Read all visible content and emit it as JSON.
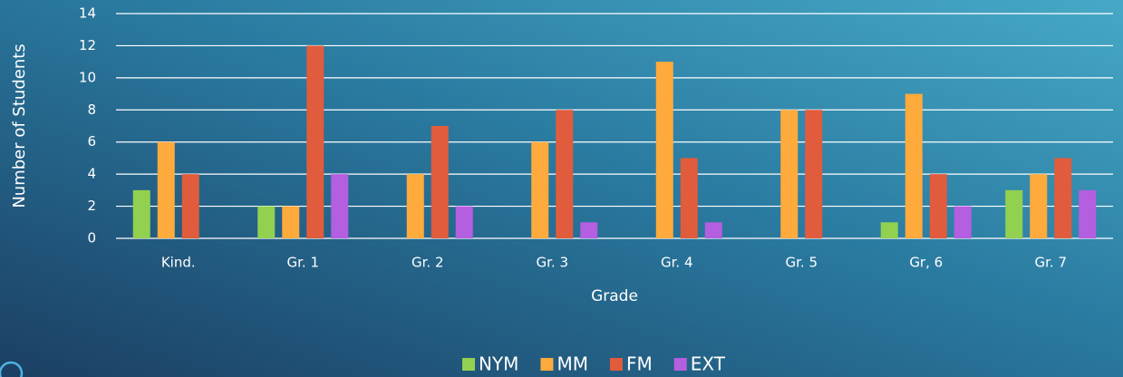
{
  "chart_data": {
    "type": "bar",
    "categories": [
      "Kind.",
      "Gr. 1",
      "Gr. 2",
      "Gr. 3",
      "Gr. 4",
      "Gr. 5",
      "Gr, 6",
      "Gr. 7"
    ],
    "series": [
      {
        "name": "NYM",
        "color": "#92d050",
        "values": [
          3,
          2,
          0,
          0,
          0,
          0,
          1,
          3
        ]
      },
      {
        "name": "MM",
        "color": "#ffaa3c",
        "values": [
          6,
          2,
          4,
          6,
          11,
          8,
          9,
          4
        ]
      },
      {
        "name": "FM",
        "color": "#e05c3c",
        "values": [
          4,
          12,
          7,
          8,
          5,
          8,
          4,
          5
        ]
      },
      {
        "name": "EXT",
        "color": "#b45ee0",
        "values": [
          0,
          4,
          2,
          1,
          1,
          0,
          2,
          3
        ]
      }
    ],
    "xlabel": "Grade",
    "ylabel": "Number of Students",
    "ylim": [
      0,
      14
    ],
    "yticks": [
      0,
      2,
      4,
      6,
      8,
      10,
      12,
      14
    ],
    "grid": true,
    "legend": "bottom"
  }
}
